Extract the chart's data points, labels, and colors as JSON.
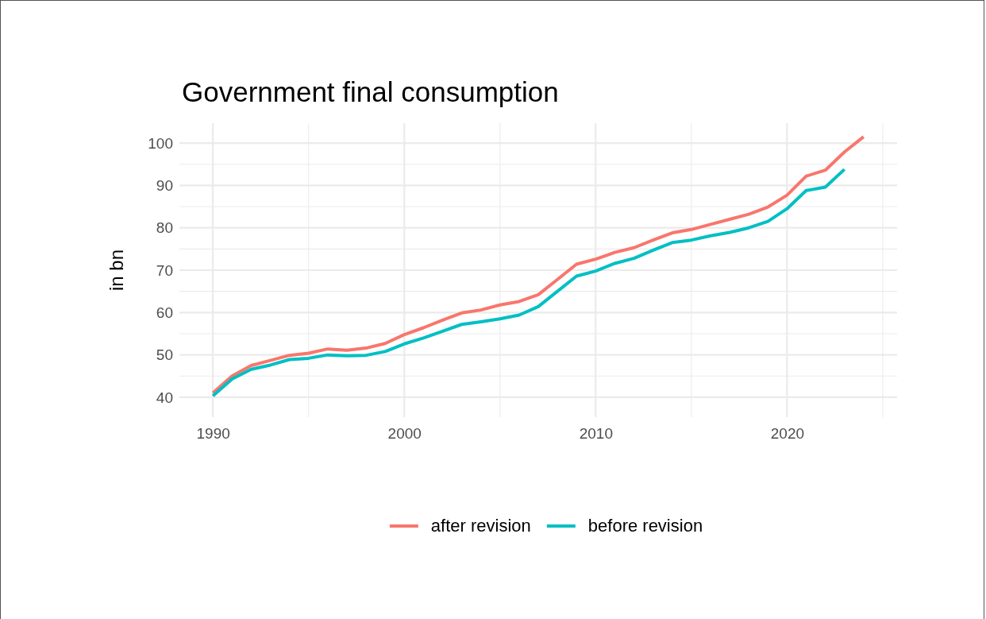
{
  "chart_data": {
    "type": "line",
    "title": "Government final consumption",
    "ylabel": "in bn",
    "x": [
      1990,
      1991,
      1992,
      1993,
      1994,
      1995,
      1996,
      1997,
      1998,
      1999,
      2000,
      2001,
      2002,
      2003,
      2004,
      2005,
      2006,
      2007,
      2008,
      2009,
      2010,
      2011,
      2012,
      2013,
      2014,
      2015,
      2016,
      2017,
      2018,
      2019,
      2020,
      2021,
      2022,
      2023,
      2024
    ],
    "series": [
      {
        "name": "after revision",
        "color": "#f8766d",
        "values": [
          41.0,
          45.0,
          47.5,
          48.7,
          49.9,
          50.4,
          51.4,
          51.1,
          51.6,
          52.7,
          54.8,
          56.4,
          58.2,
          59.9,
          60.6,
          61.8,
          62.6,
          64.2,
          67.8,
          71.4,
          72.6,
          74.2,
          75.3,
          77.1,
          78.8,
          79.6,
          80.8,
          82.0,
          83.2,
          84.9,
          87.7,
          92.2,
          93.6,
          97.9,
          101.5
        ]
      },
      {
        "name": "before revision",
        "color": "#00bfc4",
        "values": [
          40.3,
          44.3,
          46.6,
          47.6,
          48.9,
          49.2,
          50.0,
          49.8,
          49.9,
          50.8,
          52.6,
          54.0,
          55.6,
          57.2,
          57.8,
          58.5,
          59.4,
          61.4,
          65.0,
          68.6,
          69.8,
          71.6,
          72.8,
          74.7,
          76.5,
          77.1,
          78.1,
          78.9,
          80.0,
          81.5,
          84.5,
          88.8,
          89.6,
          93.8,
          null
        ]
      }
    ],
    "xlim": [
      1988.25,
      2025.75
    ],
    "xticks": [
      1990,
      2000,
      2010,
      2020
    ],
    "ylim": [
      35.3,
      104.7
    ],
    "yticks": [
      40,
      50,
      60,
      70,
      80,
      90,
      100
    ],
    "grid": true,
    "legend": "bottom",
    "line_style": "solid",
    "marker": "none"
  }
}
